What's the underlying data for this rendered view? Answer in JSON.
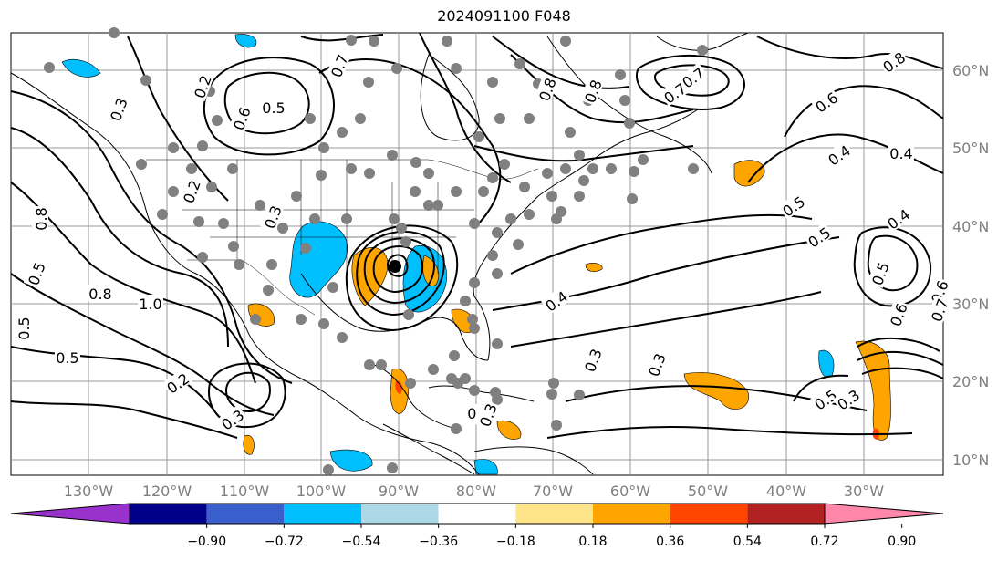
{
  "title": "2024091100 F048",
  "map": {
    "lat_labels": [
      "60°N",
      "50°N",
      "40°N",
      "30°N",
      "20°N",
      "10°N"
    ],
    "lon_labels": [
      "130°W",
      "120°W",
      "110°W",
      "100°W",
      "90°W",
      "80°W",
      "70°W",
      "60°W",
      "50°W",
      "40°W",
      "30°W"
    ],
    "contour_labels": [
      "0.2",
      "0.3",
      "0.5",
      "0.6",
      "0.7",
      "0.8",
      "0.8",
      "0.7",
      "0.7",
      "0.8",
      "0.6",
      "0.4",
      "0.5",
      "0.4",
      "0.5",
      "0.4",
      "0.5",
      "0.6",
      "0.7",
      "0.5",
      "0.3",
      "0.8",
      "1.0",
      "0.8",
      "0.5",
      "0.5",
      "0.2",
      "0.3",
      "0.2",
      "0.3",
      "0.4",
      "0.3",
      "0.3",
      "0.5",
      "0.6",
      "0.2",
      "0.3"
    ],
    "colors": {
      "land_border": "#000000",
      "contour": "#000000",
      "grid": "#999999",
      "obs_dot": "#808080",
      "pos_fill": "#ffa500",
      "pos_fill_strong": "#ff4500",
      "neg_fill": "#00bfff"
    }
  },
  "colorbar": {
    "ticks": [
      "−0.90",
      "−0.72",
      "−0.54",
      "−0.36",
      "−0.18",
      "0.18",
      "0.36",
      "0.54",
      "0.72",
      "0.90"
    ],
    "colors": [
      "#9932cc",
      "#00008b",
      "#3a5fcd",
      "#00bfff",
      "#add8e6",
      "#ffffff",
      "#ffe58a",
      "#ffa500",
      "#ff4500",
      "#b22222",
      "#ff88aa"
    ]
  }
}
